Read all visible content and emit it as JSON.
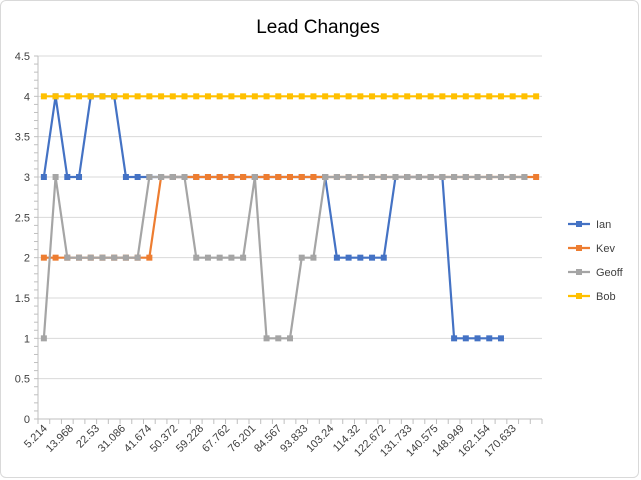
{
  "chart_data": {
    "type": "line",
    "title": "Lead Changes",
    "xlabel": "",
    "ylabel": "",
    "ylim": [
      0,
      4.5
    ],
    "y_ticks": [
      "0",
      "0.5",
      "1",
      "1.5",
      "2",
      "2.5",
      "3",
      "3.5",
      "4",
      "4.5"
    ],
    "x_tick_labels": [
      "5.214",
      "13.968",
      "22.53",
      "31.086",
      "41.674",
      "50.372",
      "59.228",
      "67.762",
      "76.201",
      "84.567",
      "93.833",
      "103.24",
      "114.32",
      "122.672",
      "131.733",
      "140.575",
      "148.949",
      "162.154",
      "170.633"
    ],
    "grid": "horizontal",
    "legend_position": "right",
    "series": [
      {
        "name": "Ian",
        "color": "#4472c4",
        "values": [
          3,
          4,
          3,
          3,
          4,
          4,
          4,
          3,
          3,
          3,
          3,
          3,
          3,
          3,
          3,
          3,
          3,
          3,
          3,
          3,
          3,
          3,
          3,
          3,
          3,
          2,
          2,
          2,
          2,
          2,
          3,
          3,
          3,
          3,
          3,
          1,
          1,
          1,
          1,
          1,
          null,
          null,
          null
        ]
      },
      {
        "name": "Kev",
        "color": "#ed7d31",
        "values": [
          2,
          2,
          2,
          2,
          2,
          2,
          2,
          2,
          2,
          2,
          3,
          3,
          3,
          3,
          3,
          3,
          3,
          3,
          3,
          3,
          3,
          3,
          3,
          3,
          3,
          3,
          3,
          3,
          3,
          3,
          3,
          3,
          3,
          3,
          3,
          3,
          3,
          3,
          3,
          3,
          3,
          3,
          3
        ]
      },
      {
        "name": "Geoff",
        "color": "#a5a5a5",
        "values": [
          1,
          3,
          2,
          2,
          2,
          2,
          2,
          2,
          2,
          3,
          3,
          3,
          3,
          2,
          2,
          2,
          2,
          2,
          3,
          1,
          1,
          1,
          2,
          2,
          3,
          3,
          3,
          3,
          3,
          3,
          3,
          3,
          3,
          3,
          3,
          3,
          3,
          3,
          3,
          3,
          3,
          3,
          null
        ]
      },
      {
        "name": "Bob",
        "color": "#ffc000",
        "values": [
          4,
          4,
          4,
          4,
          4,
          4,
          4,
          4,
          4,
          4,
          4,
          4,
          4,
          4,
          4,
          4,
          4,
          4,
          4,
          4,
          4,
          4,
          4,
          4,
          4,
          4,
          4,
          4,
          4,
          4,
          4,
          4,
          4,
          4,
          4,
          4,
          4,
          4,
          4,
          4,
          4,
          4,
          4
        ]
      }
    ]
  }
}
